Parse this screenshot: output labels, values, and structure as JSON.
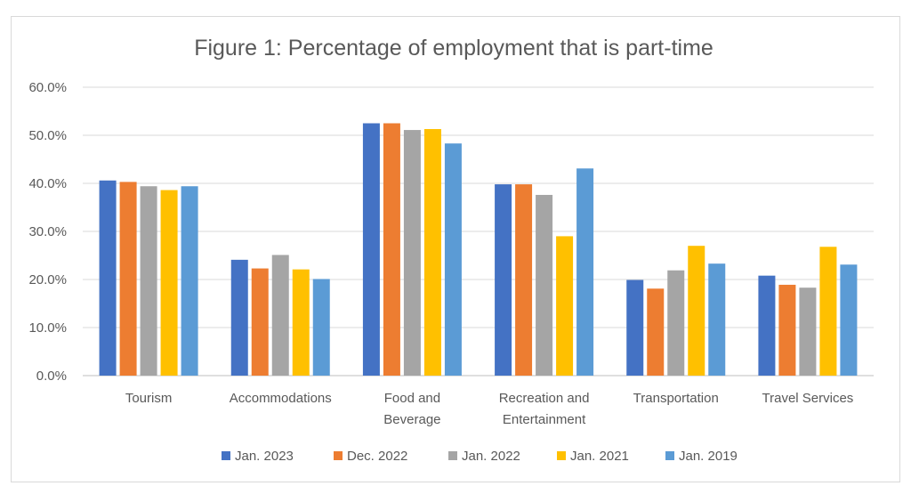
{
  "chart_data": {
    "type": "bar",
    "title": "Figure 1: Percentage of employment that is part-time",
    "xlabel": "",
    "ylabel": "",
    "ylim": [
      0,
      60
    ],
    "yticks": [
      "0.0%",
      "10.0%",
      "20.0%",
      "30.0%",
      "40.0%",
      "50.0%",
      "60.0%"
    ],
    "categories": [
      [
        "Tourism"
      ],
      [
        "Accommodations"
      ],
      [
        "Food and",
        "Beverage"
      ],
      [
        "Recreation and",
        "Entertainment"
      ],
      [
        "Transportation"
      ],
      [
        "Travel Services"
      ]
    ],
    "series": [
      {
        "name": "Jan. 2023",
        "color": "#4472c4",
        "values": [
          40.6,
          24.1,
          52.5,
          39.8,
          19.9,
          20.8
        ]
      },
      {
        "name": "Dec. 2022",
        "color": "#ed7d31",
        "values": [
          40.3,
          22.3,
          52.5,
          39.8,
          18.1,
          18.9
        ]
      },
      {
        "name": "Jan. 2022",
        "color": "#a5a5a5",
        "values": [
          39.4,
          25.1,
          51.1,
          37.6,
          21.9,
          18.3
        ]
      },
      {
        "name": "Jan. 2021",
        "color": "#ffc000",
        "values": [
          38.6,
          22.1,
          51.3,
          29.0,
          27.0,
          26.8
        ]
      },
      {
        "name": "Jan. 2019",
        "color": "#5b9bd5",
        "values": [
          39.4,
          20.1,
          48.3,
          43.1,
          23.3,
          23.1
        ]
      }
    ],
    "grid": true,
    "legend_position": "bottom"
  }
}
